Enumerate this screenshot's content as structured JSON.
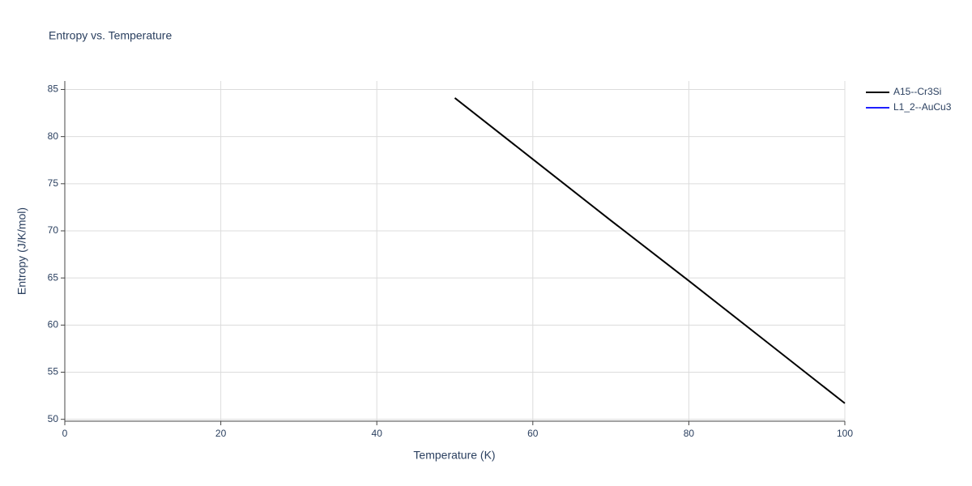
{
  "chart_data": {
    "type": "line",
    "title": "Entropy vs. Temperature",
    "x_label": "Temperature (K)",
    "y_label": "Entropy (J/K/mol)",
    "series": [
      {
        "name": "A15--Cr3Si",
        "color": "#000000",
        "x": [
          50,
          60,
          70,
          80,
          90,
          100
        ],
        "values": [
          84.1,
          77.6,
          71.1,
          64.7,
          58.2,
          51.7
        ]
      },
      {
        "name": "L1_2--AuCu3",
        "color": "#1f1fff",
        "x": [],
        "values": []
      }
    ],
    "xlim": [
      0,
      100
    ],
    "xticks": [
      0,
      20,
      40,
      60,
      80,
      100
    ],
    "ylim": [
      49.8,
      85.9
    ],
    "yticks": [
      50,
      55,
      60,
      65,
      70,
      75,
      80,
      85
    ],
    "grid": true,
    "legend": "right"
  }
}
